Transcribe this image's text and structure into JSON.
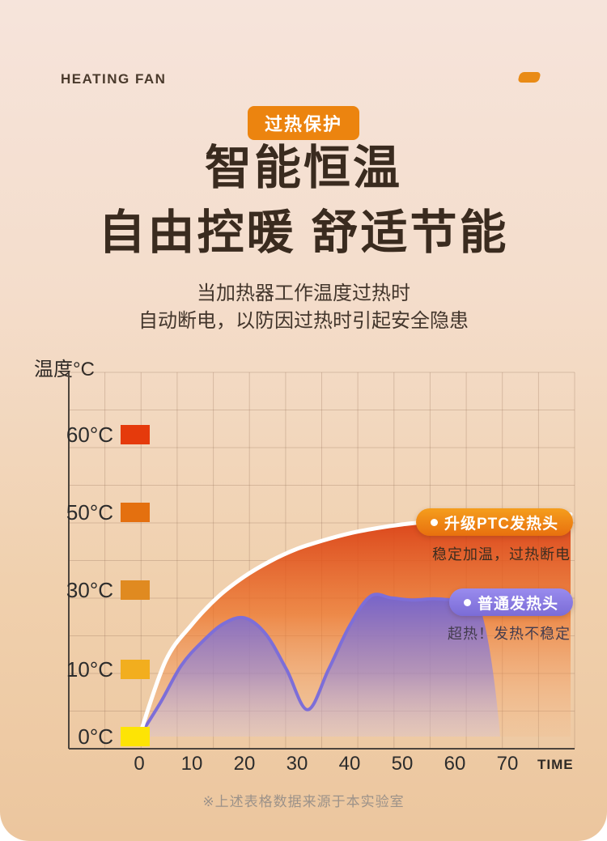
{
  "header": {
    "brand": "HEATING FAN"
  },
  "hero": {
    "badge": "过热保护",
    "title_line1": "智能恒温",
    "title_line2": "自由控暖 舒适节能",
    "subtitle_line1": "当加热器工作温度过热时",
    "subtitle_line2": "自动断电，以防因过热时引起安全隐患"
  },
  "footnote": "※上述表格数据来源于本实验室",
  "chart_data": {
    "type": "line",
    "xlabel": "TIME",
    "ylabel": "温度°C",
    "grid": true,
    "legend_position": "right-on-chart",
    "x_ticks": [
      0,
      10,
      20,
      30,
      40,
      50,
      60,
      70
    ],
    "y_ticks": [
      {
        "label": "60°C",
        "value": 60,
        "color": "#e53a0c"
      },
      {
        "label": "50°C",
        "value": 50,
        "color": "#e4700f"
      },
      {
        "label": "30°C",
        "value": 30,
        "color": "#e08a20"
      },
      {
        "label": "10°C",
        "value": 10,
        "color": "#f2ae1e"
      },
      {
        "label": "0°C",
        "value": 0,
        "color": "#fde405"
      }
    ],
    "series": [
      {
        "name": "升级PTC发热头",
        "description": "稳定加温，过热断电",
        "line_color": "#ffffff",
        "badge_colors": [
          "#f59e1d",
          "#e8700e"
        ],
        "fill_colors": [
          "#d93a10",
          "#ec6e22",
          "#f6b27c"
        ],
        "x": [
          0,
          5,
          10,
          15,
          20,
          25,
          30,
          35,
          40,
          45,
          50,
          55,
          60,
          65,
          70,
          75,
          80,
          82
        ],
        "y": [
          0,
          12.1,
          21.3,
          28.3,
          33.5,
          37.5,
          40.6,
          42.8,
          44.6,
          45.9,
          46.9,
          47.6,
          48.2,
          48.6,
          49.0,
          49.2,
          49.4,
          49.5
        ]
      },
      {
        "name": "普通发热头",
        "description": "超热！发热不稳定",
        "line_color": "#7d6ed8",
        "badge_colors": [
          "#998bee",
          "#7b6cd6"
        ],
        "fill_colors": [
          "#7163d2",
          "#8d82dd",
          "#cfc9f0"
        ],
        "x": [
          0,
          4,
          8,
          12,
          16,
          20,
          24,
          28,
          32,
          36,
          40,
          44,
          48,
          52,
          56,
          60,
          64
        ],
        "y": [
          0,
          5,
          11,
          17,
          21.5,
          23,
          19,
          10,
          4,
          10,
          21,
          28.5,
          28,
          27.5,
          27.8,
          27.5,
          27.6
        ]
      }
    ]
  }
}
